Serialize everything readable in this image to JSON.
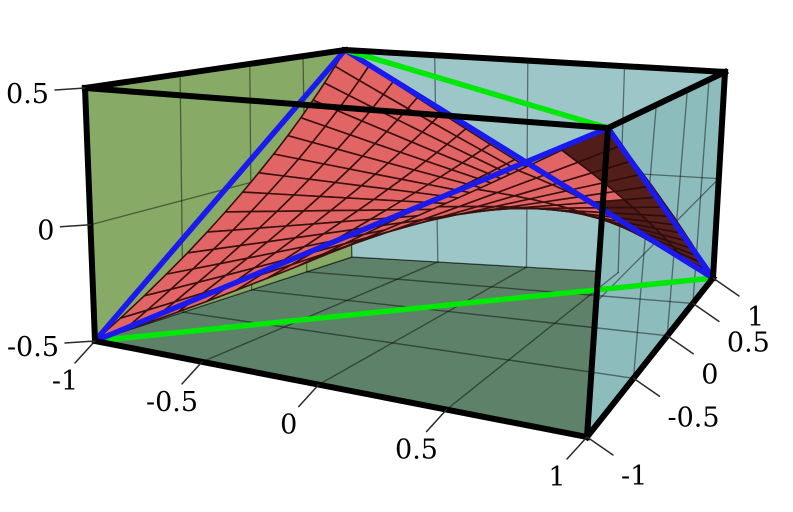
{
  "chart_data": {
    "type": "surface3d",
    "title": "",
    "surface": {
      "equation": "z = -x*y/2",
      "z_coefficient_xy": -0.5,
      "x_range": [
        -1,
        1
      ],
      "y_range": [
        -1,
        1
      ],
      "z_range": [
        -0.5,
        0.5
      ],
      "mesh_divisions": 15
    },
    "axes": {
      "x": {
        "ticks": [
          -1,
          -0.5,
          0,
          0.5,
          1
        ],
        "tick_labels": [
          "-1",
          "-0.5",
          "0",
          "0.5",
          "1"
        ]
      },
      "y": {
        "ticks": [
          -1,
          -0.5,
          0,
          0.5,
          1
        ],
        "tick_labels": [
          "-1",
          "-0.5",
          "0",
          "0.5",
          "1"
        ]
      },
      "z": {
        "ticks": [
          -0.5,
          0,
          0.5
        ],
        "tick_labels": [
          "-0.5",
          "0",
          "0.5"
        ]
      }
    },
    "boundary_edges": [
      {
        "from": [
          -1,
          -1,
          -0.5
        ],
        "to": [
          -1,
          1,
          0.5
        ]
      },
      {
        "from": [
          -1,
          1,
          0.5
        ],
        "to": [
          1,
          1,
          -0.5
        ]
      },
      {
        "from": [
          1,
          1,
          -0.5
        ],
        "to": [
          1,
          -1,
          0.5
        ]
      },
      {
        "from": [
          1,
          -1,
          0.5
        ],
        "to": [
          -1,
          -1,
          -0.5
        ]
      }
    ],
    "diagonal_lines": [
      {
        "name": "bottom-face-diagonal",
        "from": [
          -1,
          -1,
          -0.5
        ],
        "to": [
          1,
          1,
          -0.5
        ],
        "plane": "z=-0.5"
      },
      {
        "name": "top-face-diagonal",
        "from": [
          -1,
          1,
          0.5
        ],
        "to": [
          1,
          -1,
          0.5
        ],
        "plane": "z=0.5"
      }
    ],
    "grid_lines": {
      "wall_values": [
        -0.5,
        0,
        0.5
      ],
      "z_wall_values": [
        0
      ]
    },
    "style": {
      "background": "#ffffff",
      "surface_top_color": "#e26565",
      "surface_bottom_color_light": "#8d4036",
      "surface_bottom_color_dark": "#4f1b18",
      "mesh_line_color": "#3a100e",
      "boundary_edge_color": "#1a1aee",
      "diagonal_color": "#00e808",
      "box_edge_color": "#000000",
      "wall_left_color": "#87aa66",
      "wall_back_color": "#9dc6c8",
      "wall_right_color": "#8dbcbd",
      "floor_color": "#5d8169",
      "wall_grid_color": "rgba(0,0,0,0.45)",
      "tick_color": "#2b2b2b",
      "label_color": "#000000"
    }
  }
}
